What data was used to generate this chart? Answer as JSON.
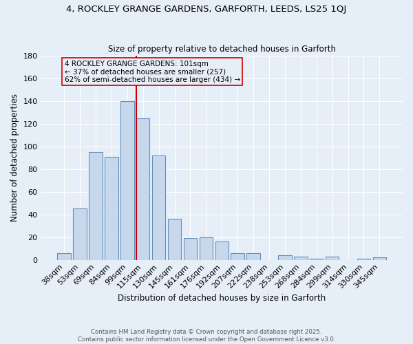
{
  "title_line1": "4, ROCKLEY GRANGE GARDENS, GARFORTH, LEEDS, LS25 1QJ",
  "title_line2": "Size of property relative to detached houses in Garforth",
  "xlabel": "Distribution of detached houses by size in Garforth",
  "ylabel": "Number of detached properties",
  "bar_labels": [
    "38sqm",
    "53sqm",
    "69sqm",
    "84sqm",
    "99sqm",
    "115sqm",
    "130sqm",
    "145sqm",
    "161sqm",
    "176sqm",
    "192sqm",
    "207sqm",
    "222sqm",
    "238sqm",
    "253sqm",
    "268sqm",
    "284sqm",
    "299sqm",
    "314sqm",
    "330sqm",
    "345sqm"
  ],
  "bar_values": [
    6,
    45,
    95,
    91,
    140,
    125,
    92,
    36,
    19,
    20,
    16,
    6,
    6,
    0,
    4,
    3,
    1,
    3,
    0,
    1,
    2
  ],
  "bar_color": "#c8d8ec",
  "bar_edge_color": "#6090c0",
  "bg_color": "#e6eef8",
  "grid_color": "#ffffff",
  "vline_x_index": 5,
  "vline_color": "#cc0000",
  "annotation_text": "4 ROCKLEY GRANGE GARDENS: 101sqm\n← 37% of detached houses are smaller (257)\n62% of semi-detached houses are larger (434) →",
  "footer_line1": "Contains HM Land Registry data © Crown copyright and database right 2025.",
  "footer_line2": "Contains public sector information licensed under the Open Government Licence v3.0.",
  "ylim": [
    0,
    180
  ],
  "yticks": [
    0,
    20,
    40,
    60,
    80,
    100,
    120,
    140,
    160,
    180
  ]
}
